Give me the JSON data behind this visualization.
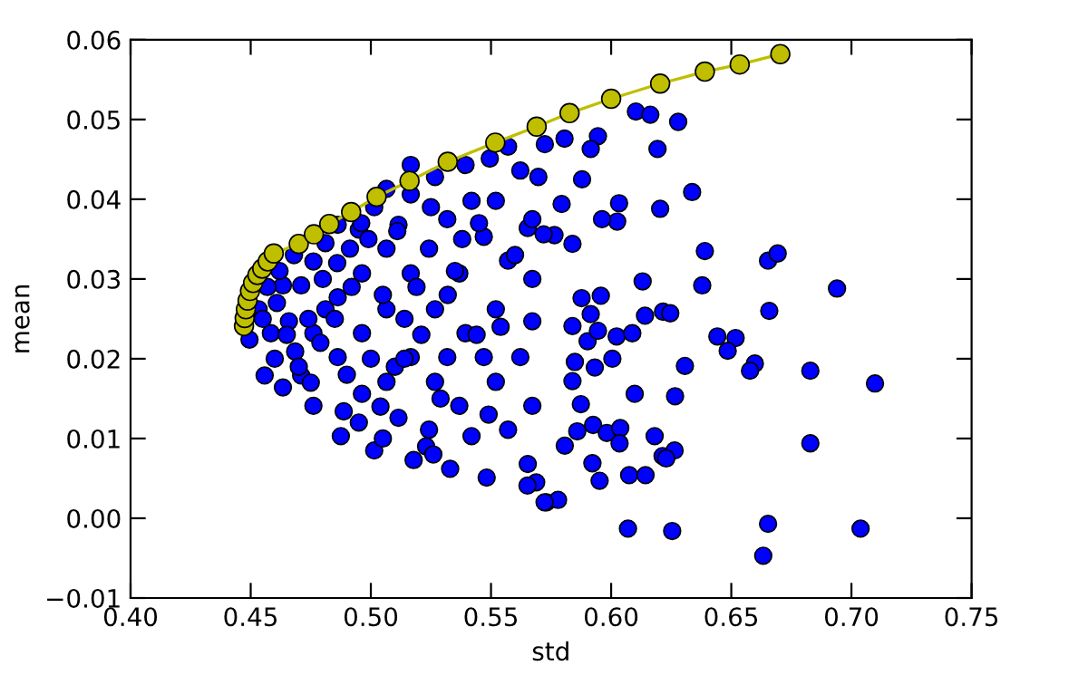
{
  "chart_data": {
    "type": "scatter",
    "xlabel": "std",
    "ylabel": "mean",
    "xlim": [
      0.4,
      0.75
    ],
    "ylim": [
      -0.01,
      0.06
    ],
    "xticks": [
      {
        "value": 0.4,
        "label": "0.40"
      },
      {
        "value": 0.45,
        "label": "0.45"
      },
      {
        "value": 0.5,
        "label": "0.50"
      },
      {
        "value": 0.55,
        "label": "0.55"
      },
      {
        "value": 0.6,
        "label": "0.60"
      },
      {
        "value": 0.65,
        "label": "0.65"
      },
      {
        "value": 0.7,
        "label": "0.70"
      },
      {
        "value": 0.75,
        "label": "0.75"
      }
    ],
    "yticks": [
      {
        "value": -0.01,
        "label": "−0.01"
      },
      {
        "value": 0.0,
        "label": "0.00"
      },
      {
        "value": 0.01,
        "label": "0.01"
      },
      {
        "value": 0.02,
        "label": "0.02"
      },
      {
        "value": 0.03,
        "label": "0.03"
      },
      {
        "value": 0.04,
        "label": "0.04"
      },
      {
        "value": 0.05,
        "label": "0.05"
      },
      {
        "value": 0.06,
        "label": "0.06"
      }
    ],
    "grid": false,
    "legend": false,
    "marker": "circle",
    "series": [
      {
        "color": "#0000ff",
        "x": [
          0.6103,
          0.6163,
          0.6279,
          0.6193,
          0.6337,
          0.6204,
          0.6033,
          0.6025,
          0.5962,
          0.639,
          0.6653,
          0.6693,
          0.694,
          0.6379,
          0.6131,
          0.6658,
          0.6216,
          0.6246,
          0.6141,
          0.6442,
          0.6518,
          0.6485,
          0.6023,
          0.6088,
          0.6005,
          0.6307,
          0.6598,
          0.6578,
          0.6829,
          0.7098,
          0.6098,
          0.6266,
          0.5932,
          0.5849,
          0.5839,
          0.5874,
          0.5859,
          0.5925,
          0.5982,
          0.6038,
          0.6035,
          0.6181,
          0.6214,
          0.6264,
          0.6229,
          0.5807,
          0.5922,
          0.5952,
          0.6075,
          0.6143,
          0.6829,
          0.607,
          0.6254,
          0.6653,
          0.6633,
          0.7038,
          0.5731,
          0.5779,
          0.5688,
          0.5653,
          0.5879,
          0.5794,
          0.5724,
          0.5806,
          0.5945,
          0.5915,
          0.5839,
          0.5764,
          0.5877,
          0.5957,
          0.5915,
          0.5902,
          0.5945,
          0.5839,
          0.5653,
          0.5719,
          0.4495,
          0.4558,
          0.4634,
          0.4761,
          0.4875,
          0.5014,
          0.5178,
          0.533,
          0.5482,
          0.5652,
          0.5723,
          0.4533,
          0.4609,
          0.4584,
          0.4659,
          0.471,
          0.4761,
          0.4811,
          0.4862,
          0.495,
          0.5014,
          0.5065,
          0.5166,
          0.5267,
          0.5394,
          0.5495,
          0.5571,
          0.5622,
          0.5318,
          0.547,
          0.5571,
          0.5672,
          0.552,
          0.5394,
          0.5267,
          0.5166,
          0.5065,
          0.4963,
          0.4862,
          0.4761,
          0.4862,
          0.4963,
          0.5065,
          0.5166,
          0.5065,
          0.4963,
          0.5267,
          0.5368,
          0.552,
          0.5622,
          0.5672,
          0.5571,
          0.5419,
          0.5242,
          0.5115,
          0.4887,
          0.471,
          0.4685,
          0.4811,
          0.4634,
          0.4913,
          0.5115,
          0.5242,
          0.5368,
          0.5419,
          0.552,
          0.5672,
          0.5697,
          0.5166,
          0.547,
          0.5318,
          0.5672,
          0.457,
          0.462,
          0.468,
          0.474,
          0.48,
          0.486,
          0.492,
          0.499,
          0.505,
          0.511,
          0.519,
          0.525,
          0.532,
          0.538,
          0.545,
          0.46,
          0.47,
          0.479,
          0.49,
          0.5,
          0.51,
          0.521,
          0.529,
          0.544,
          0.554,
          0.455,
          0.465,
          0.475,
          0.485,
          0.495,
          0.504,
          0.514,
          0.523,
          0.535,
          0.549,
          0.56,
          0.505,
          0.496,
          0.514,
          0.526
        ],
        "values": [
          0.051,
          0.0506,
          0.0497,
          0.0463,
          0.0409,
          0.0388,
          0.0395,
          0.0372,
          0.0375,
          0.0335,
          0.0323,
          0.0332,
          0.0288,
          0.0292,
          0.0297,
          0.026,
          0.0259,
          0.0257,
          0.0254,
          0.0228,
          0.0226,
          0.021,
          0.0228,
          0.0232,
          0.02,
          0.0191,
          0.0194,
          0.0185,
          0.0185,
          0.0169,
          0.0156,
          0.0153,
          0.0189,
          0.0196,
          0.0172,
          0.0143,
          0.0109,
          0.0117,
          0.0107,
          0.0113,
          0.0094,
          0.0103,
          0.0078,
          0.0085,
          0.0075,
          0.0091,
          0.0069,
          0.0047,
          0.0054,
          0.0054,
          0.0094,
          -0.0013,
          -0.0016,
          -0.0007,
          -0.0047,
          -0.0013,
          0.002,
          0.0023,
          0.0045,
          0.0068,
          0.0425,
          0.0394,
          0.0469,
          0.0476,
          0.0479,
          0.0463,
          0.0344,
          0.0355,
          0.0276,
          0.0279,
          0.0256,
          0.0222,
          0.0235,
          0.0241,
          0.0364,
          0.0356,
          0.0224,
          0.0179,
          0.0164,
          0.0141,
          0.0103,
          0.0085,
          0.0073,
          0.0062,
          0.0051,
          0.0041,
          0.002,
          0.0262,
          0.027,
          0.0232,
          0.0247,
          0.0292,
          0.0322,
          0.0345,
          0.0368,
          0.0362,
          0.039,
          0.0413,
          0.0406,
          0.0428,
          0.0443,
          0.0451,
          0.0466,
          0.0436,
          0.0375,
          0.0353,
          0.0323,
          0.03,
          0.0262,
          0.0232,
          0.0262,
          0.0307,
          0.0338,
          0.0307,
          0.0277,
          0.0232,
          0.0202,
          0.0232,
          0.0262,
          0.0202,
          0.0171,
          0.0156,
          0.0171,
          0.0141,
          0.0171,
          0.0202,
          0.0141,
          0.0111,
          0.0103,
          0.0111,
          0.0126,
          0.0134,
          0.0179,
          0.0209,
          0.0262,
          0.0292,
          0.0338,
          0.0368,
          0.0338,
          0.0307,
          0.0398,
          0.0398,
          0.0375,
          0.0428,
          0.0443,
          0.0202,
          0.0202,
          0.0247,
          0.029,
          0.031,
          0.033,
          0.025,
          0.03,
          0.032,
          0.029,
          0.035,
          0.028,
          0.036,
          0.029,
          0.039,
          0.028,
          0.035,
          0.037,
          0.02,
          0.019,
          0.022,
          0.018,
          0.02,
          0.019,
          0.023,
          0.015,
          0.023,
          0.024,
          0.025,
          0.023,
          0.017,
          0.025,
          0.012,
          0.014,
          0.025,
          0.009,
          0.031,
          0.013,
          0.033,
          0.01,
          0.037,
          0.02,
          0.008
        ]
      },
      {
        "type": "line",
        "color": "#bfbf00",
        "x": [
          0.4472,
          0.4475,
          0.448,
          0.4487,
          0.4497,
          0.451,
          0.4528,
          0.4548,
          0.4571,
          0.4596,
          0.47,
          0.4763,
          0.4827,
          0.4918,
          0.5024,
          0.5161,
          0.532,
          0.5518,
          0.569,
          0.5827,
          0.6,
          0.6204,
          0.639,
          0.6535,
          0.6704
        ],
        "values": [
          0.0241,
          0.0251,
          0.0262,
          0.0273,
          0.0285,
          0.0295,
          0.0305,
          0.0313,
          0.0322,
          0.0332,
          0.0344,
          0.0356,
          0.0369,
          0.0384,
          0.0403,
          0.0423,
          0.0447,
          0.0471,
          0.0491,
          0.0508,
          0.0526,
          0.0545,
          0.056,
          0.0569,
          0.0582
        ]
      }
    ]
  }
}
